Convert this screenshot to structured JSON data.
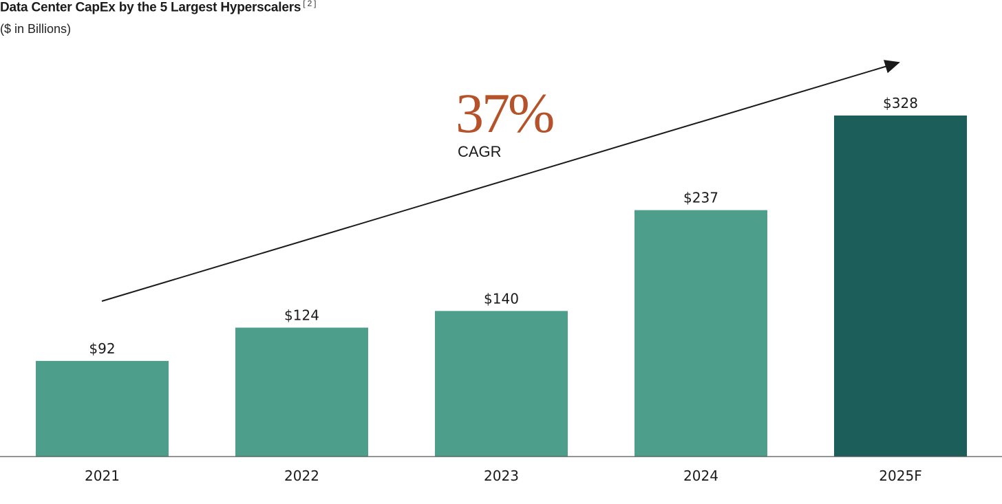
{
  "chart_data": {
    "type": "bar",
    "title": "Data Center CapEx by the 5 Largest Hyperscalers",
    "title_footnote": "[ 2 ]",
    "subtitle": "($ in Billions)",
    "categories": [
      "2021",
      "2022",
      "2023",
      "2024",
      "2025F"
    ],
    "values": [
      92,
      124,
      140,
      237,
      328
    ],
    "data_labels": [
      "$92",
      "$124",
      "$140",
      "$237",
      "$328"
    ],
    "ylim": [
      0,
      440
    ],
    "xlabel": "",
    "ylabel": "",
    "grid": false,
    "bar_colors": [
      "#4e9e8c",
      "#4e9e8c",
      "#4e9e8c",
      "#4e9e8c",
      "#1b5e5a"
    ],
    "annotation": {
      "value": "37%",
      "label": "CAGR",
      "value_color": "#b5522a",
      "trend_arrow": true
    }
  }
}
